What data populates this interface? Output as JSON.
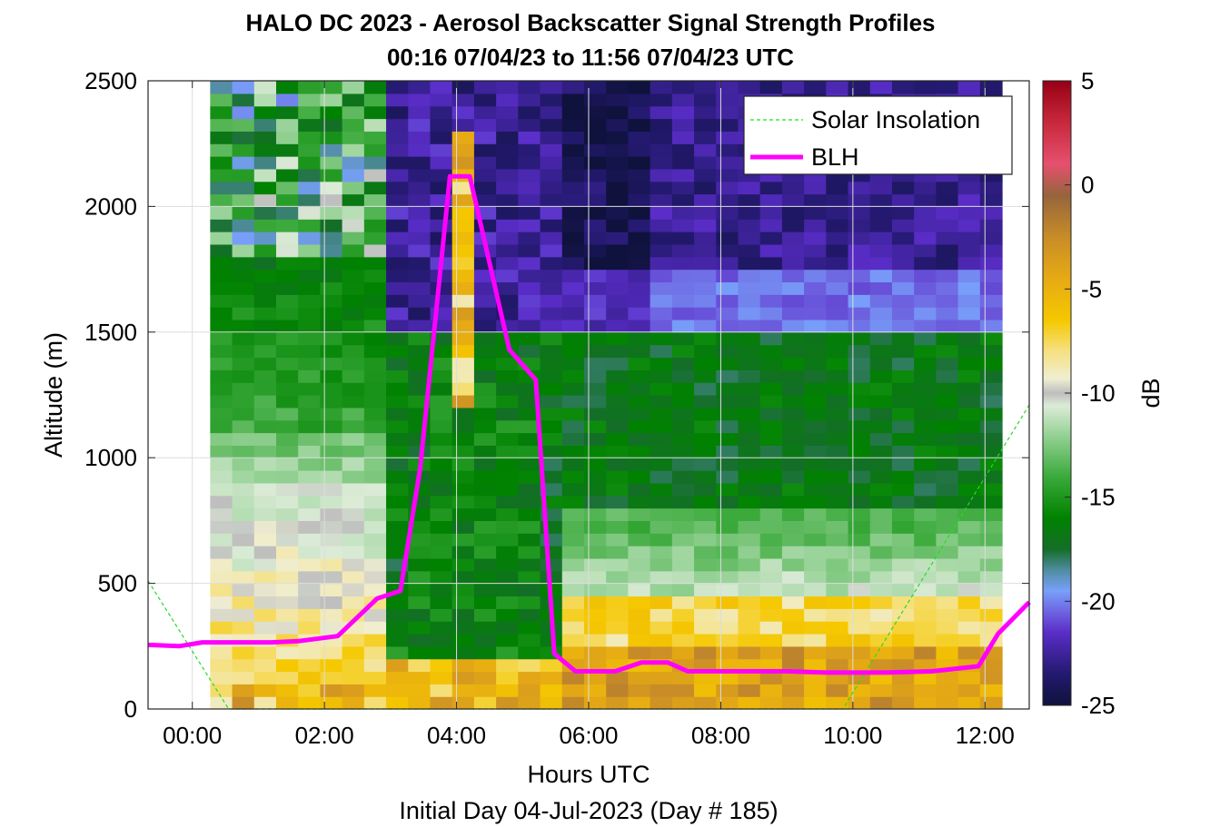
{
  "chart_data": {
    "type": "heatmap",
    "title_line1": "HALO DC 2023 - Aerosol Backscatter Signal Strength Profiles",
    "title_line2": "00:16 07/04/23 to 11:56 07/04/23  UTC",
    "xlabel": "Hours UTC",
    "xlabel2": "Initial Day 04-Jul-2023 (Day # 185)",
    "ylabel": "Altitude (m)",
    "xlim": [
      -0.67,
      12.67
    ],
    "ylim": [
      0,
      2500
    ],
    "x_ticks": [
      0,
      2,
      4,
      6,
      8,
      10,
      12
    ],
    "x_tick_labels": [
      "00:00",
      "02:00",
      "04:00",
      "06:00",
      "08:00",
      "10:00",
      "12:00"
    ],
    "y_ticks": [
      0,
      500,
      1000,
      1500,
      2000,
      2500
    ],
    "y_tick_labels": [
      "0",
      "500",
      "1000",
      "1500",
      "2000",
      "2500"
    ],
    "grid": true,
    "colorbar": {
      "label": "dB",
      "range": [
        -25,
        5
      ],
      "ticks": [
        5,
        0,
        -5,
        -10,
        -15,
        -20,
        -25
      ],
      "tick_labels": [
        "5",
        "0",
        "-5",
        "-10",
        "-15",
        "-20",
        "-25"
      ]
    },
    "legend": {
      "placement": "top-right",
      "entries": [
        {
          "label": "Solar Insolation",
          "color": "#22dd22",
          "style": "dashed"
        },
        {
          "label": "BLH",
          "color": "#ff00ff",
          "style": "solid"
        }
      ]
    },
    "heatmap": {
      "x_start": 0.27,
      "x_end": 11.94,
      "dx": 0.333,
      "y_start": 0,
      "y_end": 2500,
      "dy": 50,
      "value_range_dB": [
        -25,
        5
      ]
    },
    "series": [
      {
        "name": "BLH",
        "x": [
          -0.67,
          -0.2,
          0.15,
          0.55,
          1.2,
          1.6,
          2.2,
          2.8,
          3.15,
          3.45,
          3.9,
          4.2,
          4.8,
          5.2,
          5.48,
          5.8,
          6.4,
          6.8,
          7.2,
          7.5,
          8.2,
          9.0,
          9.6,
          10.5,
          11.2,
          11.9,
          12.2,
          12.67
        ],
        "y": [
          255,
          250,
          265,
          265,
          265,
          270,
          290,
          440,
          470,
          960,
          2120,
          2120,
          1430,
          1310,
          220,
          150,
          150,
          185,
          185,
          150,
          150,
          150,
          145,
          145,
          150,
          170,
          300,
          425
        ]
      },
      {
        "name": "Solar Insolation",
        "x": [
          -0.67,
          0.55,
          9.85,
          12.67
        ],
        "y": [
          510,
          0,
          0,
          1210
        ]
      }
    ]
  }
}
